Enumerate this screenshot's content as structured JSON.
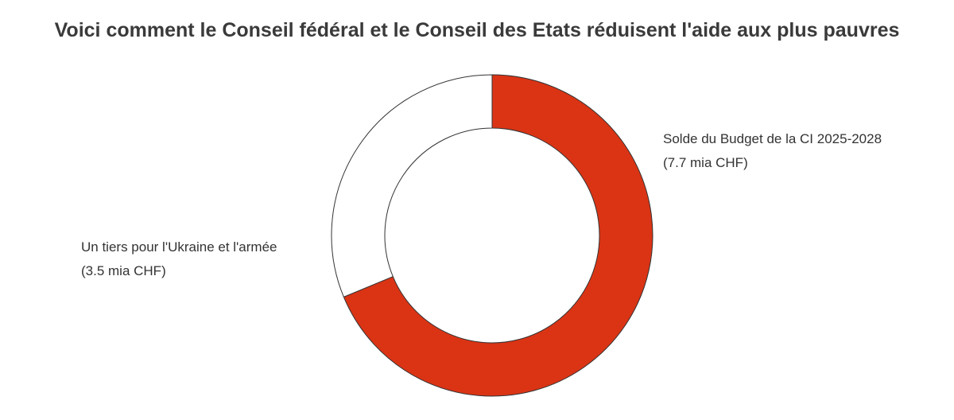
{
  "chart_data": {
    "type": "pie",
    "title": "Voici comment le Conseil fédéral et le Conseil des Etats réduisent l'aide aux plus pauvres",
    "slices": [
      {
        "name": "Solde du Budget de la CI 2025-2028",
        "value_text": "(7.7 mia CHF)",
        "value": 7.7,
        "unit": "mia CHF",
        "color": "#DA3415"
      },
      {
        "name": "Un tiers pour l'Ukraine et l'armée",
        "value_text": "(3.5 mia CHF)",
        "value": 3.5,
        "unit": "mia CHF",
        "color": "#FFFFFF"
      }
    ],
    "style": "donut",
    "start_angle": "top, clockwise",
    "legend": "none",
    "stroke_color": "#333333"
  }
}
